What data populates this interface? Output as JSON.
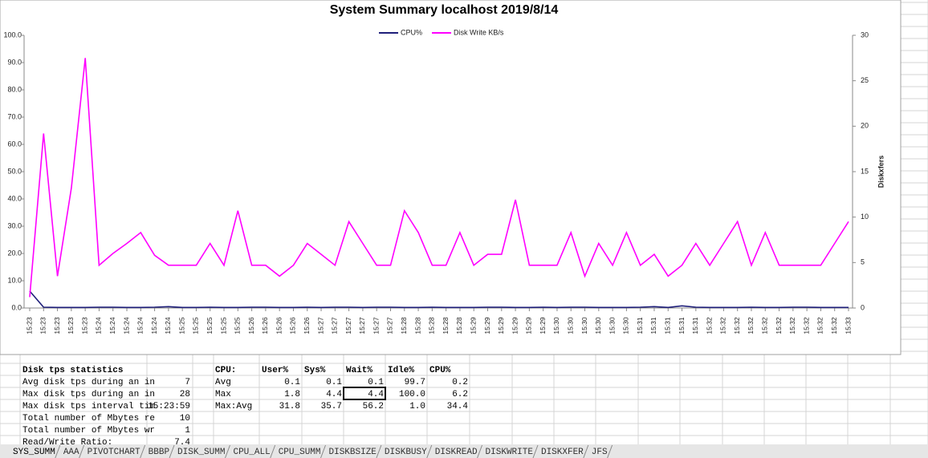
{
  "chart_data": {
    "type": "line",
    "title": "System Summary localhost  2019/8/14",
    "y2label": "Diskxfers",
    "categories": [
      "15:23",
      "15:23",
      "15:23",
      "15:23",
      "15:23",
      "15:24",
      "15:24",
      "15:24",
      "15:24",
      "15:24",
      "15:24",
      "15:25",
      "15:25",
      "15:25",
      "15:25",
      "15:25",
      "15:26",
      "15:26",
      "15:26",
      "15:26",
      "15:26",
      "15:27",
      "15:27",
      "15:27",
      "15:27",
      "15:27",
      "15:27",
      "15:28",
      "15:28",
      "15:28",
      "15:28",
      "15:28",
      "15:29",
      "15:29",
      "15:29",
      "15:29",
      "15:29",
      "15:29",
      "15:30",
      "15:30",
      "15:30",
      "15:30",
      "15:30",
      "15:30",
      "15:31",
      "15:31",
      "15:31",
      "15:31",
      "15:31",
      "15:32",
      "15:32",
      "15:32",
      "15:32",
      "15:32",
      "15:32",
      "15:32",
      "15:32",
      "15:32",
      "15:32",
      "15:33"
    ],
    "series": [
      {
        "name": "CPU%",
        "color": "#1f1f7a",
        "values": [
          6.2,
          0.3,
          0.2,
          0.2,
          0.2,
          0.3,
          0.3,
          0.2,
          0.2,
          0.3,
          0.5,
          0.2,
          0.2,
          0.3,
          0.2,
          0.2,
          0.3,
          0.3,
          0.2,
          0.2,
          0.3,
          0.2,
          0.3,
          0.3,
          0.2,
          0.3,
          0.3,
          0.2,
          0.2,
          0.3,
          0.2,
          0.2,
          0.2,
          0.3,
          0.3,
          0.2,
          0.2,
          0.3,
          0.2,
          0.3,
          0.3,
          0.2,
          0.2,
          0.2,
          0.3,
          0.5,
          0.2,
          0.8,
          0.3,
          0.2,
          0.2,
          0.2,
          0.3,
          0.2,
          0.2,
          0.3,
          0.3,
          0.2,
          0.2,
          0.2
        ]
      },
      {
        "name": "Disk Write KB/s",
        "color": "#ff00ff",
        "axis": "y2",
        "values": [
          1.2,
          19.2,
          3.5,
          13.2,
          27.5,
          4.7,
          6,
          7.1,
          8.3,
          5.8,
          4.7,
          4.7,
          4.7,
          7.1,
          4.7,
          10.7,
          4.7,
          4.7,
          3.5,
          4.7,
          7.1,
          5.9,
          4.7,
          9.5,
          7.1,
          4.7,
          4.7,
          10.7,
          8.3,
          4.7,
          4.7,
          8.3,
          4.7,
          5.9,
          5.9,
          11.9,
          4.7,
          4.7,
          4.7,
          8.3,
          3.5,
          7.1,
          4.7,
          8.3,
          4.7,
          5.9,
          3.5,
          4.7,
          7.1,
          4.7,
          7.1,
          9.5,
          4.7,
          8.3,
          4.7,
          4.7,
          4.7,
          4.7,
          7.1,
          9.5
        ]
      }
    ],
    "ylim": [
      0,
      100
    ],
    "yticks": [
      {
        "value": 0,
        "label": "0.0"
      },
      {
        "value": 10,
        "label": "10.0"
      },
      {
        "value": 20,
        "label": "20.0"
      },
      {
        "value": 30,
        "label": "30.0"
      },
      {
        "value": 40,
        "label": "40.0"
      },
      {
        "value": 50,
        "label": "50.0"
      },
      {
        "value": 60,
        "label": "60.0"
      },
      {
        "value": 70,
        "label": "70.0"
      },
      {
        "value": 80,
        "label": "80.0"
      },
      {
        "value": 90,
        "label": "90.0"
      },
      {
        "value": 100,
        "label": "100.0"
      }
    ],
    "y2lim": [
      0,
      30
    ],
    "y2ticks": [
      0,
      5,
      10,
      15,
      20,
      25,
      30
    ],
    "grid": false,
    "legend": "top"
  },
  "disk_stats": {
    "title": "Disk tps statistics",
    "rows": [
      {
        "label": "Avg disk tps during an in",
        "value": "7"
      },
      {
        "label": "Max disk tps during an in",
        "value": "28"
      },
      {
        "label": "Max disk tps interval tim",
        "value": "15:23:59"
      },
      {
        "label": "Total number of Mbytes re",
        "value": "10"
      },
      {
        "label": "Total number of Mbytes wr",
        "value": "1"
      },
      {
        "label": "Read/Write Ratio:",
        "value": "7.4"
      }
    ]
  },
  "cpu_table": {
    "header": [
      "CPU:",
      "User%",
      "Sys%",
      "Wait%",
      "Idle%",
      "CPU%"
    ],
    "rows": [
      [
        "Avg",
        "0.1",
        "0.1",
        "0.1",
        "99.7",
        "0.2"
      ],
      [
        "Max",
        "1.8",
        "4.4",
        "4.4",
        "100.0",
        "6.2"
      ],
      [
        "Max:Avg",
        "31.8",
        "35.7",
        "56.2",
        "1.0",
        "34.4"
      ]
    ]
  },
  "tabs": [
    "SYS_SUMM",
    "AAA",
    "PIVOTCHART",
    "BBBP",
    "DISK_SUMM",
    "CPU_ALL",
    "CPU_SUMM",
    "DISKBSIZE",
    "DISKBUSY",
    "DISKREAD",
    "DISKWRITE",
    "DISKXFER",
    "JFS"
  ]
}
